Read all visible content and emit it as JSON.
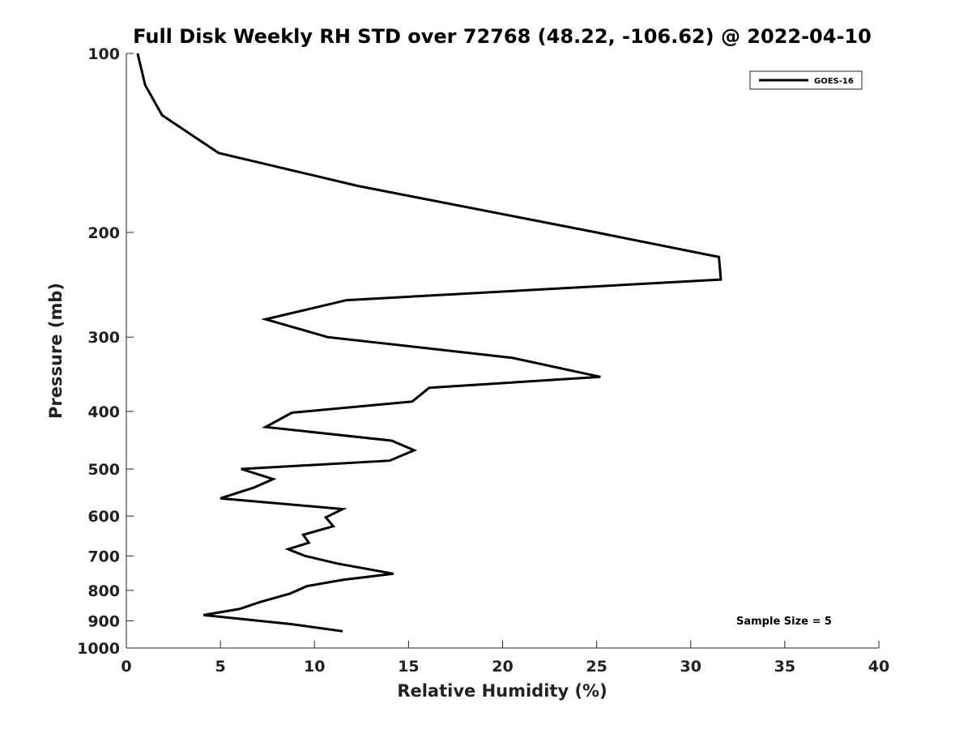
{
  "chart_data": {
    "type": "line",
    "title": "Full Disk Weekly RH STD over 72768 (48.22, -106.62) @ 2022-04-10",
    "xlabel": "Relative Humidity (%)",
    "ylabel": "Pressure (mb)",
    "xlim": [
      0,
      40
    ],
    "ylim": [
      100,
      1000
    ],
    "y_scale": "log",
    "y_inverted": true,
    "x_ticks": [
      "0",
      "5",
      "10",
      "15",
      "20",
      "25",
      "30",
      "35",
      "40"
    ],
    "y_ticks": [
      "100",
      "200",
      "300",
      "400",
      "500",
      "600",
      "700",
      "800",
      "900",
      "1000"
    ],
    "grid": false,
    "legend": {
      "placement": "top-right",
      "entries": [
        "GOES-16"
      ]
    },
    "annotations": [
      {
        "text": "Sample Size = 5",
        "placement": "bottom-right"
      }
    ],
    "series": [
      {
        "name": "GOES-16",
        "color": "#000000",
        "x": [
          0.6,
          1.0,
          1.9,
          4.9,
          12.3,
          25.0,
          31.5,
          31.6,
          11.7,
          7.4,
          10.7,
          20.5,
          25.2,
          16.1,
          15.2,
          8.8,
          7.4,
          14.1,
          15.3,
          14.0,
          6.1,
          7.8,
          6.8,
          5.0,
          11.5,
          10.6,
          11.0,
          9.4,
          9.7,
          8.6,
          9.5,
          11.2,
          14.2,
          11.5,
          9.6,
          8.7,
          7.1,
          6.0,
          4.1,
          8.8,
          11.5
        ],
        "y": [
          100,
          113,
          127,
          147,
          167,
          200,
          220,
          240,
          260,
          280,
          300,
          325,
          350,
          365,
          385,
          402,
          425,
          448,
          465,
          484,
          500,
          520,
          537,
          560,
          584,
          603,
          624,
          645,
          665,
          682,
          700,
          721,
          750,
          768,
          787,
          810,
          837,
          860,
          880,
          912,
          937
        ]
      }
    ]
  }
}
